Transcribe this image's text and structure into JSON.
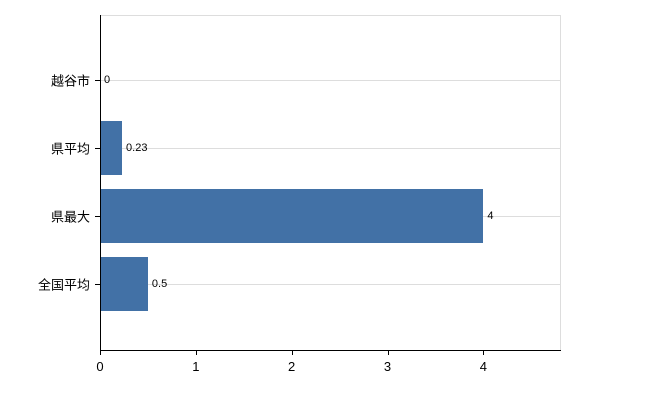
{
  "chart_data": {
    "type": "bar",
    "orientation": "horizontal",
    "title": "",
    "xlabel": "",
    "ylabel": "",
    "categories": [
      "越谷市",
      "県平均",
      "県最大",
      "全国平均"
    ],
    "values": [
      0,
      0.23,
      4,
      0.5
    ],
    "value_labels": [
      "0",
      "0.23",
      "4",
      "0.5"
    ],
    "x_ticks": [
      0,
      1,
      2,
      3,
      4
    ],
    "x_tick_labels": [
      "0",
      "1",
      "2",
      "3",
      "4"
    ],
    "xlim": [
      0,
      4.8
    ],
    "grid": "horizontal",
    "legend": "none",
    "bar_color": "#4271a6",
    "grid_color": "#dddddd",
    "axis_color": "#000000"
  }
}
